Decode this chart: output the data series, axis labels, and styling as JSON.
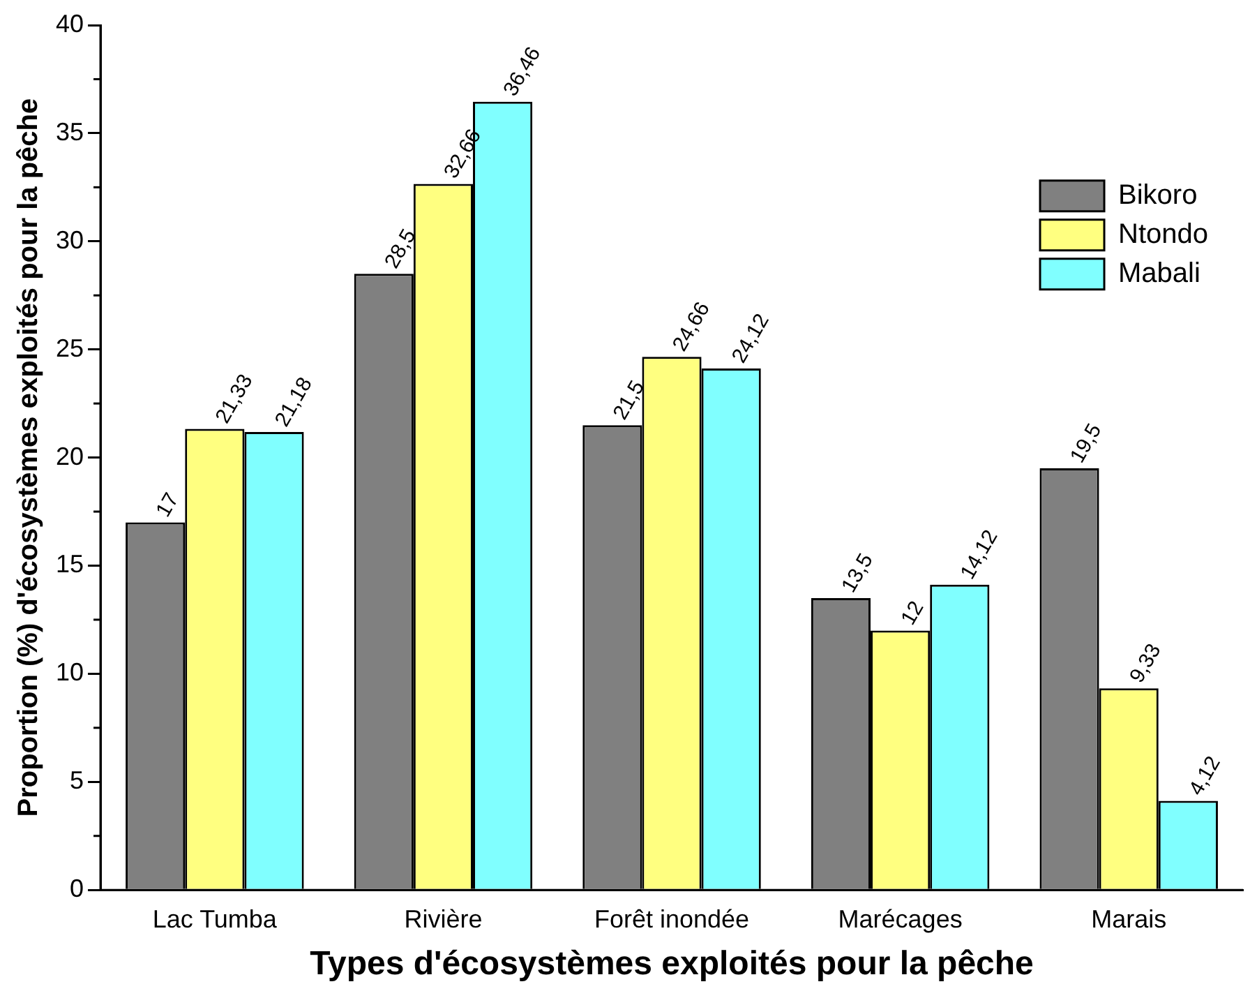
{
  "chart_data": {
    "type": "bar",
    "xlabel": "Types d'écosystèmes exploités pour la pêche",
    "ylabel": "Proportion (%) d'écosystèmes exploités pour la pêche",
    "categories": [
      "Lac Tumba",
      "Rivière",
      "Forêt inondée",
      "Marécages",
      "Marais"
    ],
    "series": [
      {
        "name": "Bikoro",
        "color": "#808080",
        "values": [
          17,
          28.5,
          21.5,
          13.5,
          19.5
        ],
        "value_labels": [
          "17",
          "28,5",
          "21,5",
          "13,5",
          "19,5"
        ]
      },
      {
        "name": "Ntondo",
        "color": "#ffff80",
        "values": [
          21.33,
          32.66,
          24.66,
          12,
          9.33
        ],
        "value_labels": [
          "21,33",
          "32,66",
          "24,66",
          "12",
          "9,33"
        ]
      },
      {
        "name": "Mabali",
        "color": "#80ffff",
        "values": [
          21.18,
          36.46,
          24.12,
          14.12,
          4.12
        ],
        "value_labels": [
          "21,18",
          "36,46",
          "24,12",
          "14,12",
          "4,12"
        ]
      }
    ],
    "ylim": [
      0,
      40
    ],
    "yticks": [
      0,
      5,
      10,
      15,
      20,
      25,
      30,
      35,
      40
    ],
    "grid": false,
    "legend": "top right"
  }
}
